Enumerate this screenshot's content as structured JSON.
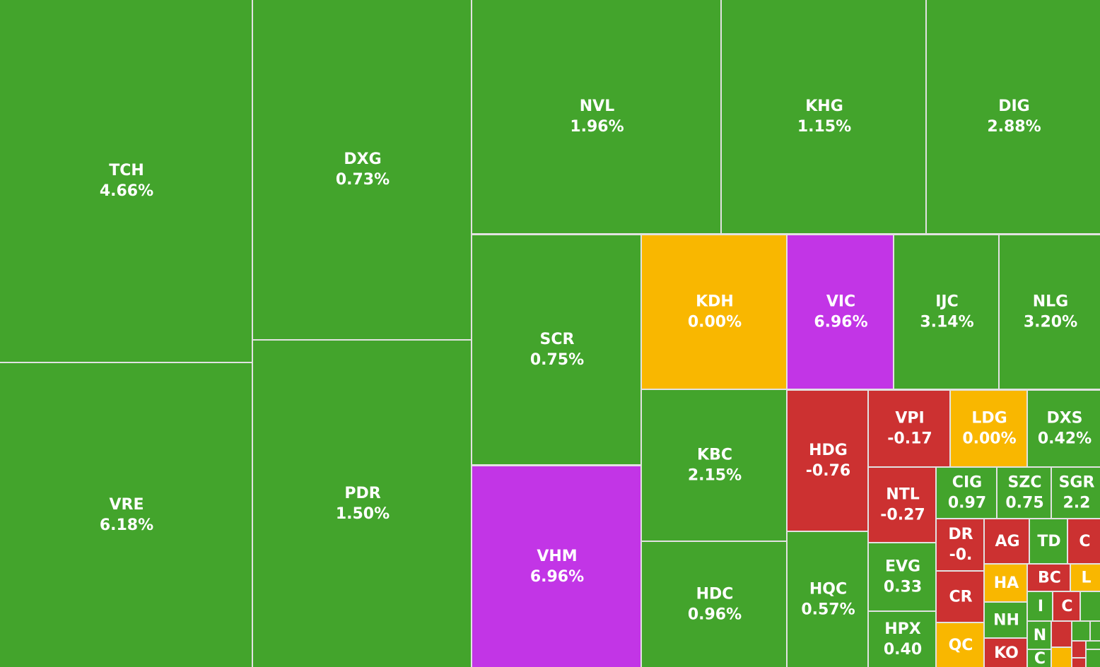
{
  "tiles": [
    {
      "ticker": "TCH",
      "change": "4.66%"
    },
    {
      "ticker": "VRE",
      "change": "6.18%"
    },
    {
      "ticker": "DXG",
      "change": "0.73%"
    },
    {
      "ticker": "PDR",
      "change": "1.50%"
    },
    {
      "ticker": "NVL",
      "change": "1.96%"
    },
    {
      "ticker": "KHG",
      "change": "1.15%"
    },
    {
      "ticker": "DIG",
      "change": "2.88%"
    },
    {
      "ticker": "SCR",
      "change": "0.75%"
    },
    {
      "ticker": "VHM",
      "change": "6.96%"
    },
    {
      "ticker": "KDH",
      "change": "0.00%"
    },
    {
      "ticker": "VIC",
      "change": "6.96%"
    },
    {
      "ticker": "IJC",
      "change": "3.14%"
    },
    {
      "ticker": "NLG",
      "change": "3.20%"
    },
    {
      "ticker": "KBC",
      "change": "2.15%"
    },
    {
      "ticker": "HDC",
      "change": "0.96%"
    },
    {
      "ticker": "HDG",
      "change": "-0.76"
    },
    {
      "ticker": "HQC",
      "change": "0.57%"
    },
    {
      "ticker": "VPI",
      "change": "-0.17"
    },
    {
      "ticker": "LDG",
      "change": "0.00%"
    },
    {
      "ticker": "DXS",
      "change": "0.42%"
    },
    {
      "ticker": "NTL",
      "change": "-0.27"
    },
    {
      "ticker": "CIG",
      "change": "0.97"
    },
    {
      "ticker": "SZC",
      "change": "0.75"
    },
    {
      "ticker": "SGR",
      "change": "2.2"
    },
    {
      "ticker": "EVG",
      "change": "0.33"
    },
    {
      "ticker": "HPX",
      "change": "0.40"
    },
    {
      "ticker": "DR",
      "change": "-0."
    },
    {
      "ticker": "CR"
    },
    {
      "ticker": "QC"
    },
    {
      "ticker": "AG"
    },
    {
      "ticker": "TD"
    },
    {
      "ticker": "C"
    },
    {
      "ticker": "HA"
    },
    {
      "ticker": "BC"
    },
    {
      "ticker": "L"
    },
    {
      "ticker": "NH"
    },
    {
      "ticker": "KO"
    },
    {
      "ticker": "I"
    },
    {
      "ticker": "C"
    },
    {
      "ticker": "N"
    },
    {
      "ticker": "C"
    }
  ]
}
